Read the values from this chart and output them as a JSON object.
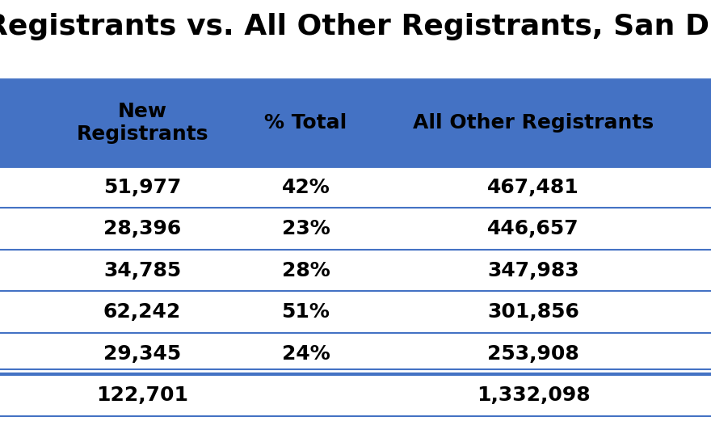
{
  "title": "New Voter Registrants vs. All Other Registrants, San Diego County",
  "columns": [
    "New\nRegistrants",
    "% Total",
    "All Other Registrants"
  ],
  "col_headers_line1": [
    "New",
    "% Total",
    "All Other Registrants"
  ],
  "col_headers_line2": [
    "Registrants",
    "",
    ""
  ],
  "rows": [
    [
      "51,977",
      "42%",
      "467,481"
    ],
    [
      "28,396",
      "23%",
      "446,657"
    ],
    [
      "34,785",
      "28%",
      "347,983"
    ],
    [
      "62,242",
      "51%",
      "301,856"
    ],
    [
      "29,345",
      "24%",
      "253,908"
    ],
    [
      "122,701",
      "",
      "1,332,098"
    ]
  ],
  "header_bg_color": "#4472C4",
  "header_text_color": "#000000",
  "data_text_color": "#000000",
  "divider_color": "#4472C4",
  "title_color": "#000000",
  "background_color": "#FFFFFF",
  "title_fontsize": 26,
  "header_fontsize": 18,
  "data_fontsize": 18
}
